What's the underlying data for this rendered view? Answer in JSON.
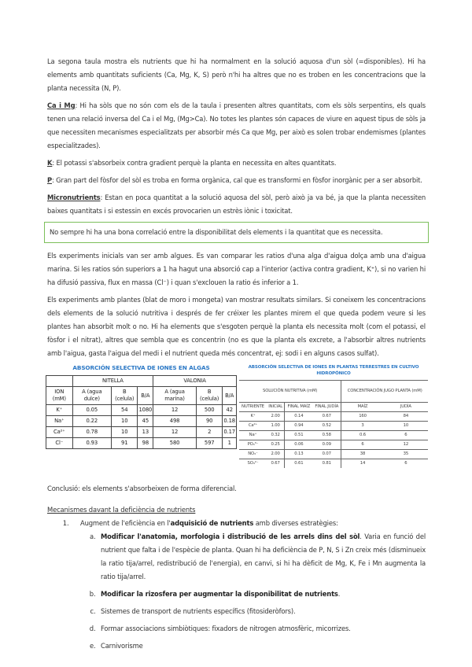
{
  "p1": "La segona taula mostra els nutrients que hi ha normalment en la solució aquosa d'un sòl (=disponibles). Hi ha elements amb quantitats suficients (Ca, Mg, K, S) però n'hi ha altres que no es troben en les concentracions que la planta necessita (N, P).",
  "camg": {
    "label": "Ca i Mg",
    "text": ": Hi ha sòls que no són com els de la taula i presenten altres quantitats, com els sòls serpentins, els quals tenen una relació inversa del Ca i el Mg, (Mg>Ca). No totes les plantes són capaces de viure en aquest tipus de sòls ja que necessiten mecanismes especialitzats per absorbir més Ca que Mg, per això es solen trobar endemismes (plantes especialitzades)."
  },
  "k": {
    "label": "K",
    "text": ": El potassi s'absorbeix contra gradient perquè la planta en necessita en altes quantitats."
  },
  "p": {
    "label": "P",
    "text": ": Gran part del fòsfor del sòl es troba en forma orgànica, cal que es transformi en fòsfor inorgànic per a ser absorbit."
  },
  "micro": {
    "label": "Micronutrients",
    "text": ": Estan en poca quantitat a la solució aquosa del sòl, però això ja va bé, ja que la planta necessiten baixes quantitats i si estessin en excés provocarien un estrès iònic i toxicitat."
  },
  "note": "No sempre hi ha una bona correlació entre la disponibilitat dels elements i la quantitat que es necessita.",
  "p_exp": "Els experiments inicials van ser amb algues. Es van comparar les ratios d'una alga d'aigua dolça amb una d'aigua marina. Si les ratios són superiors a 1 ha hagut una absorció cap a l'interior (activa contra gradient, K⁺), si no varien hi ha difusió passiva, flux en massa (Cl⁻) i quan s'exclouen la ratio és inferior a 1.",
  "p_plants": "Els experiments amb plantes (blat de moro i mongeta) van mostrar resultats similars. Si coneixem les concentracions dels elements de la solució nutritiva i després de fer créixer les plantes mirem el que queda podem veure si les plantes han absorbit molt o no. Hi ha elements que s'esgoten perquè la planta els necessita molt (com el potassi, el fòsfor i el nitrat), altres que sembla que es concentrin (no es que la planta els excrete, a l'absorbir altres nutrients amb l'aigua, gasta l'aigua del medi i el nutrient queda més concentrat, ej: sodi i en alguns casos sulfat).",
  "table1": {
    "title": "ABSORCIÓN SELECTIVA DE IONES EN ALGAS",
    "group1": "NITELLA",
    "group2": "VALONIA",
    "headers": [
      "ION (mM)",
      "A (agua dulce)",
      "B (celula)",
      "B/A",
      "A (agua marina)",
      "B (celula)",
      "B/A"
    ],
    "rows": [
      [
        "K⁺",
        "0.05",
        "54",
        "1080",
        "12",
        "500",
        "42"
      ],
      [
        "Na⁺",
        "0.22",
        "10",
        "45",
        "498",
        "90",
        "0.18"
      ],
      [
        "Ca²⁺",
        "0.78",
        "10",
        "13",
        "12",
        "2",
        "0.17"
      ],
      [
        "Cl⁻",
        "0.93",
        "91",
        "98",
        "580",
        "597",
        "1"
      ]
    ]
  },
  "table2": {
    "title": "ABSORCIÓN SELECTIVA DE IONES EN PLANTAS TERRESTRES EN CULTIVO HIDROPÓNICO",
    "group1": "SOLUCIÓN NUTRITIVA (mM)",
    "group2": "CONCENTRACIÓN JUGO PLANTA (mM)",
    "headers": [
      "NUTRIENTE",
      "INICIAL",
      "FINAL MAÍZ",
      "FINAL JUDÍA",
      "MAÍZ",
      "JUDÍA"
    ],
    "rows": [
      [
        "K⁺",
        "2.00",
        "0.14",
        "0.67",
        "160",
        "84"
      ],
      [
        "Ca²⁺",
        "1.00",
        "0.94",
        "0.52",
        "3",
        "10"
      ],
      [
        "Na⁺",
        "0.32",
        "0.51",
        "0.58",
        "0.6",
        "6"
      ],
      [
        "PO₄³⁻",
        "0.25",
        "0.06",
        "0.09",
        "6",
        "12"
      ],
      [
        "NO₃⁻",
        "2.00",
        "0.13",
        "0.07",
        "38",
        "35"
      ],
      [
        "SO₄²⁻",
        "0.67",
        "0.61",
        "0.81",
        "14",
        "6"
      ]
    ]
  },
  "conclusio": "Conclusió: els elements s'absorbeixen de forma diferencial.",
  "mech_title": "Mecanismes davant la deficiència de nutrients",
  "item1": {
    "pre": "Augment de l'eficiència en l'",
    "bold": "adquisició de nutrients",
    "post": " amb diverses estratègies:"
  },
  "sub": [
    {
      "bold": "Modificar l'anatomia, morfologia i distribució de les arrels dins del sòl",
      "text": ". Varia en funció del nutrient que falta i de l'espècie de planta. Quan hi ha deficiència de P, N, S i Zn creix més (disminueix la ratio tija/arrel, redistribució de l'energia), en canvi, si hi ha dèficit de Mg, K, Fe i Mn augmenta la ratio tija/arrel."
    },
    {
      "bold": "Modificar la rizosfera per augmentar la disponibilitat de nutrients",
      "text": "."
    },
    {
      "bold": "",
      "text": "Sistemes de transport de nutrients específics (fitosideròfors)."
    },
    {
      "bold": "",
      "text": "Formar associacions simbiòtiques: fixadors de nitrogen atmosfèric, micorrizes."
    },
    {
      "bold": "",
      "text": "Carnivorisme"
    }
  ],
  "colors": {
    "note_border": "#7cbf5a",
    "table_title": "#2b78c5"
  }
}
